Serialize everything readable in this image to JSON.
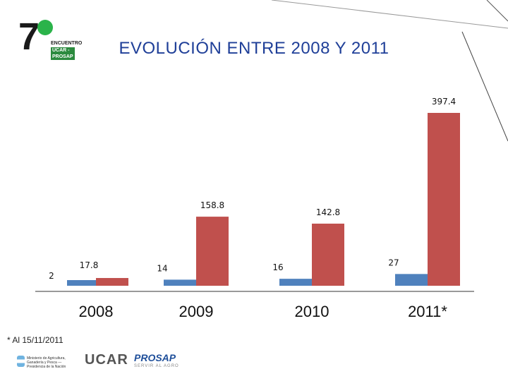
{
  "logo": {
    "number": "7",
    "line1": "ENCUENTRO",
    "line2": "UCAR - PROSAP"
  },
  "title": "EVOLUCIÓN ENTRE 2008 Y 2011",
  "footnote": "* Al 15/11/2011",
  "footer": {
    "ministry": "Ministerio de Agricultura, Ganadería y Pesca — Presidencia de la Nación",
    "ucar": "UCAR",
    "prosap": "PROSAP",
    "prosap_sub": "SERVIR AL AGRO"
  },
  "colors": {
    "blue": "#4f81bd",
    "red": "#c0504d",
    "title": "#1f3f98"
  },
  "chart_data": {
    "type": "bar",
    "categories": [
      "2008",
      "2009",
      "2010",
      "2011*"
    ],
    "series": [
      {
        "values": [
          2,
          14,
          16,
          27
        ],
        "color": "#4f81bd"
      },
      {
        "values": [
          17.8,
          158.8,
          142.8,
          397.4
        ],
        "color": "#c0504d"
      }
    ],
    "value_labels": [
      [
        "2",
        "14",
        "16",
        "27"
      ],
      [
        "17.8",
        "158.8",
        "142.8",
        "397.4"
      ]
    ],
    "title": "EVOLUCIÓN ENTRE 2008 Y 2011",
    "xlabel": "",
    "ylabel": "",
    "ylim": [
      0,
      400
    ],
    "grid": false,
    "legend": "none"
  }
}
